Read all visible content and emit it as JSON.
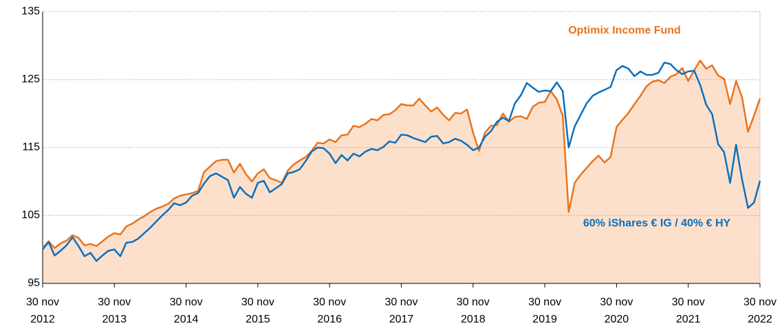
{
  "chart_data": {
    "type": "line",
    "categories": [
      "30 nov 2012",
      null,
      null,
      null,
      null,
      null,
      null,
      null,
      null,
      null,
      null,
      null,
      "30 nov 2013",
      null,
      null,
      null,
      null,
      null,
      null,
      null,
      null,
      null,
      null,
      null,
      "30 nov 2014",
      null,
      null,
      null,
      null,
      null,
      null,
      null,
      null,
      null,
      null,
      null,
      "30 nov 2015",
      null,
      null,
      null,
      null,
      null,
      null,
      null,
      null,
      null,
      null,
      null,
      "30 nov 2016",
      null,
      null,
      null,
      null,
      null,
      null,
      null,
      null,
      null,
      null,
      null,
      "30 nov 2017",
      null,
      null,
      null,
      null,
      null,
      null,
      null,
      null,
      null,
      null,
      null,
      "30 nov 2018",
      null,
      null,
      null,
      null,
      null,
      null,
      null,
      null,
      null,
      null,
      null,
      "30 nov 2019",
      null,
      null,
      null,
      null,
      null,
      null,
      null,
      null,
      null,
      null,
      null,
      "30 nov 2020",
      null,
      null,
      null,
      null,
      null,
      null,
      null,
      null,
      null,
      null,
      null,
      "30 nov 2021",
      null,
      null,
      null,
      null,
      null,
      null,
      null,
      null,
      null,
      null,
      null,
      "30 nov 2022"
    ],
    "series": [
      {
        "name": "Optimix Income Fund",
        "color": "#e8731e",
        "fill": "#fde0cc",
        "values": [
          100.2,
          101.2,
          100.2,
          100.9,
          101.3,
          102.1,
          101.7,
          100.6,
          100.8,
          100.5,
          101.2,
          101.9,
          102.4,
          102.2,
          103.4,
          103.8,
          104.4,
          104.9,
          105.5,
          106.0,
          106.3,
          106.7,
          107.5,
          107.9,
          108.1,
          108.3,
          108.6,
          111.4,
          112.2,
          113.0,
          113.2,
          113.2,
          111.3,
          112.6,
          111.1,
          110.0,
          111.2,
          111.8,
          110.5,
          110.2,
          109.8,
          111.6,
          112.5,
          113.1,
          113.6,
          114.5,
          115.7,
          115.6,
          116.2,
          115.8,
          116.8,
          116.9,
          118.2,
          118.0,
          118.5,
          119.2,
          119.0,
          119.8,
          119.9,
          120.5,
          121.4,
          121.2,
          121.2,
          122.2,
          121.2,
          120.3,
          120.9,
          119.8,
          119.0,
          120.1,
          120.0,
          120.6,
          117.2,
          114.5,
          117.2,
          118.2,
          118.3,
          120.0,
          118.8,
          119.5,
          119.6,
          119.2,
          121.0,
          121.6,
          121.7,
          123.3,
          122.1,
          119.7,
          105.5,
          109.8,
          111.0,
          112.0,
          113.0,
          113.8,
          112.8,
          113.6,
          118.0,
          119.1,
          120.1,
          121.4,
          122.6,
          124.0,
          124.7,
          124.9,
          124.5,
          125.4,
          125.8,
          126.7,
          124.8,
          126.4,
          127.8,
          126.6,
          127.1,
          125.6,
          125.1,
          121.4,
          124.8,
          122.4,
          117.3,
          119.7,
          122.2
        ]
      },
      {
        "name": "60% iShares € IG / 40% € HY",
        "color": "#0b6fbd",
        "values": [
          100.0,
          101.1,
          99.1,
          99.8,
          100.6,
          101.8,
          100.5,
          99.0,
          99.5,
          98.3,
          99.1,
          99.8,
          100.0,
          99.0,
          101.0,
          101.1,
          101.6,
          102.4,
          103.2,
          104.1,
          105.0,
          105.8,
          106.8,
          106.5,
          106.9,
          107.9,
          108.3,
          109.7,
          110.8,
          111.2,
          110.7,
          110.2,
          107.6,
          109.2,
          108.2,
          107.6,
          109.8,
          110.1,
          108.4,
          109.0,
          109.6,
          111.2,
          111.4,
          111.8,
          113.0,
          114.4,
          115.0,
          114.9,
          114.1,
          112.7,
          113.9,
          113.1,
          114.1,
          113.7,
          114.4,
          114.8,
          114.6,
          115.1,
          115.9,
          115.7,
          116.9,
          116.8,
          116.4,
          116.1,
          115.8,
          116.6,
          116.7,
          115.6,
          115.8,
          116.3,
          116.0,
          115.4,
          114.6,
          115.0,
          116.6,
          117.4,
          118.8,
          119.4,
          118.9,
          121.5,
          122.7,
          124.5,
          123.8,
          123.2,
          123.4,
          123.3,
          124.6,
          123.3,
          115.0,
          118.1,
          119.8,
          121.5,
          122.6,
          123.1,
          123.5,
          123.9,
          126.4,
          127.0,
          126.6,
          125.5,
          126.2,
          125.7,
          125.7,
          126.0,
          127.5,
          127.3,
          126.4,
          125.8,
          126.2,
          126.3,
          124.2,
          121.3,
          119.9,
          115.5,
          114.3,
          109.8,
          115.4,
          110.3,
          106.1,
          106.9,
          110.1
        ]
      }
    ],
    "ylim": [
      95,
      135
    ],
    "yticks": [
      95,
      105,
      115,
      125,
      135
    ],
    "grid": true
  }
}
